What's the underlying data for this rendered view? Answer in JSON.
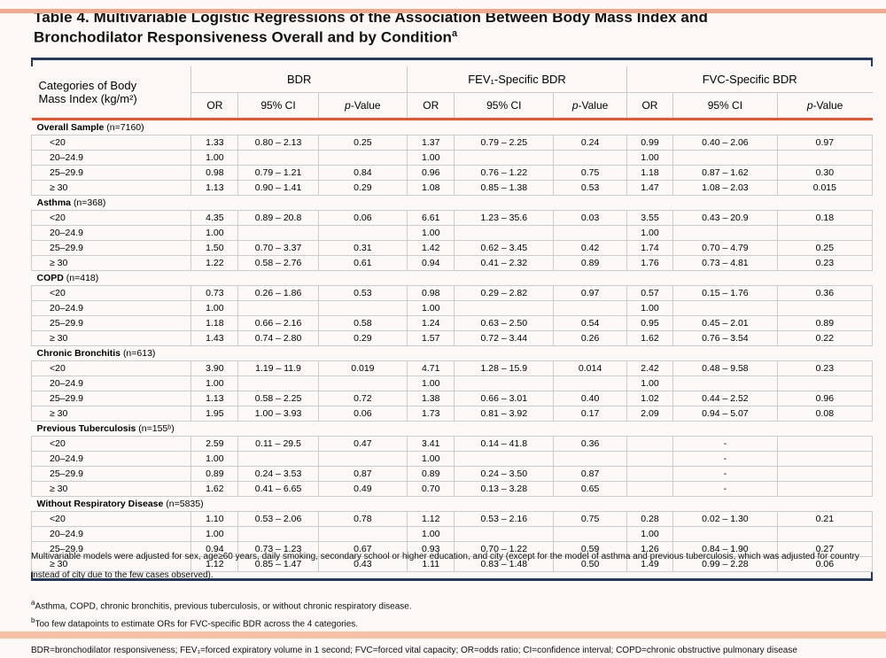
{
  "page": {
    "accent_navy": "#24395e",
    "accent_orange": "#ed5328",
    "accent_salmon": "#f2a98e"
  },
  "title": {
    "line1": "Table 4. Multivariable Logistic Regressions of the Association Between Body Mass Index and",
    "line2": "Bronchodilator Responsiveness Overall and by Condition",
    "superscript": "a"
  },
  "header": {
    "label_col_line1": "Categories of Body",
    "label_col_line2": "Mass Index (kg/m²)",
    "group1": "BDR",
    "group2": "FEV₁-Specific BDR",
    "group3": "FVC-Specific BDR",
    "sub_or": "OR",
    "sub_ci": "95% CI",
    "sub_p_italic": "p",
    "sub_p_rest": "-Value"
  },
  "table": {
    "sections": [
      {
        "name": "Overall Sample",
        "n": "(n=7160)",
        "rows": [
          {
            "category": "<20",
            "values": [
              "1.33",
              "0.80 – 2.13",
              "0.25",
              "1.37",
              "0.79 – 2.25",
              "0.24",
              "0.99",
              "0.40 – 2.06",
              "0.97"
            ]
          },
          {
            "category": "20–24.9",
            "values": [
              "1.00",
              "",
              "",
              "1.00",
              "",
              "",
              "1.00",
              "",
              ""
            ]
          },
          {
            "category": "25–29.9",
            "values": [
              "0.98",
              "0.79 – 1.21",
              "0.84",
              "0.96",
              "0.76 – 1.22",
              "0.75",
              "1.18",
              "0.87 – 1.62",
              "0.30"
            ]
          },
          {
            "category": "≥ 30",
            "values": [
              "1.13",
              "0.90 – 1.41",
              "0.29",
              "1.08",
              "0.85 – 1.38",
              "0.53",
              "1.47",
              "1.08 – 2.03",
              "0.015"
            ]
          }
        ]
      },
      {
        "name": "Asthma",
        "n": "(n=368)",
        "rows": [
          {
            "category": "<20",
            "values": [
              "4.35",
              "0.89 – 20.8",
              "0.06",
              "6.61",
              "1.23 – 35.6",
              "0.03",
              "3.55",
              "0.43 – 20.9",
              "0.18"
            ]
          },
          {
            "category": "20–24.9",
            "values": [
              "1.00",
              "",
              "",
              "1.00",
              "",
              "",
              "1.00",
              "",
              ""
            ]
          },
          {
            "category": "25–29.9",
            "values": [
              "1.50",
              "0.70 – 3.37",
              "0.31",
              "1.42",
              "0.62 – 3.45",
              "0.42",
              "1.74",
              "0.70 – 4.79",
              "0.25"
            ]
          },
          {
            "category": "≥ 30",
            "values": [
              "1.22",
              "0.58 – 2.76",
              "0.61",
              "0.94",
              "0.41 – 2.32",
              "0.89",
              "1.76",
              "0.73 – 4.81",
              "0.23"
            ]
          }
        ]
      },
      {
        "name": "COPD",
        "n": "(n=418)",
        "rows": [
          {
            "category": "<20",
            "values": [
              "0.73",
              "0.26 – 1.86",
              "0.53",
              "0.98",
              "0.29 – 2.82",
              "0.97",
              "0.57",
              "0.15 – 1.76",
              "0.36"
            ]
          },
          {
            "category": "20–24.9",
            "values": [
              "1.00",
              "",
              "",
              "1.00",
              "",
              "",
              "1.00",
              "",
              ""
            ]
          },
          {
            "category": "25–29.9",
            "values": [
              "1.18",
              "0.66 – 2.16",
              "0.58",
              "1.24",
              "0.63 – 2.50",
              "0.54",
              "0.95",
              "0.45 – 2.01",
              "0.89"
            ]
          },
          {
            "category": "≥ 30",
            "values": [
              "1.43",
              "0.74 – 2.80",
              "0.29",
              "1.57",
              "0.72 – 3.44",
              "0.26",
              "1.62",
              "0.76 – 3.54",
              "0.22"
            ]
          }
        ]
      },
      {
        "name": "Chronic Bronchitis",
        "n": "(n=613)",
        "rows": [
          {
            "category": "<20",
            "values": [
              "3.90",
              "1.19 – 11.9",
              "0.019",
              "4.71",
              "1.28 – 15.9",
              "0.014",
              "2.42",
              "0.48 – 9.58",
              "0.23"
            ]
          },
          {
            "category": "20–24.9",
            "values": [
              "1.00",
              "",
              "",
              "1.00",
              "",
              "",
              "1.00",
              "",
              ""
            ]
          },
          {
            "category": "25–29.9",
            "values": [
              "1.13",
              "0.58 – 2.25",
              "0.72",
              "1.38",
              "0.66 – 3.01",
              "0.40",
              "1.02",
              "0.44 – 2.52",
              "0.96"
            ]
          },
          {
            "category": "≥ 30",
            "values": [
              "1.95",
              "1.00 – 3.93",
              "0.06",
              "1.73",
              "0.81 – 3.92",
              "0.17",
              "2.09",
              "0.94 – 5.07",
              "0.08"
            ]
          }
        ]
      },
      {
        "name": "Previous Tuberculosis",
        "n": "(n=155ᵇ)",
        "rows": [
          {
            "category": "<20",
            "values": [
              "2.59",
              "0.11 – 29.5",
              "0.47",
              "3.41",
              "0.14 – 41.8",
              "0.36",
              "",
              "-",
              ""
            ]
          },
          {
            "category": "20–24.9",
            "values": [
              "1.00",
              "",
              "",
              "1.00",
              "",
              "",
              "",
              "-",
              ""
            ]
          },
          {
            "category": "25–29.9",
            "values": [
              "0.89",
              "0.24 – 3.53",
              "0.87",
              "0.89",
              "0.24 – 3.50",
              "0.87",
              "",
              "-",
              ""
            ]
          },
          {
            "category": "≥ 30",
            "values": [
              "1.62",
              "0.41 – 6.65",
              "0.49",
              "0.70",
              "0.13 – 3.28",
              "0.65",
              "",
              "-",
              ""
            ]
          }
        ]
      },
      {
        "name": "Without Respiratory Disease",
        "n": "(n=5835)",
        "rows": [
          {
            "category": "<20",
            "values": [
              "1.10",
              "0.53 – 2.06",
              "0.78",
              "1.12",
              "0.53 – 2.16",
              "0.75",
              "0.28",
              "0.02 – 1.30",
              "0.21"
            ]
          },
          {
            "category": "20–24.9",
            "values": [
              "1.00",
              "",
              "",
              "1.00",
              "",
              "",
              "1.00",
              "",
              ""
            ]
          },
          {
            "category": "25–29.9",
            "values": [
              "0.94",
              "0.73 – 1.23",
              "0.67",
              "0.93",
              "0.70 – 1.22",
              "0.59",
              "1.26",
              "0.84 – 1.90",
              "0.27"
            ]
          },
          {
            "category": "≥ 30",
            "values": [
              "1.12",
              "0.85 – 1.47",
              "0.43",
              "1.11",
              "0.83 – 1.48",
              "0.50",
              "1.49",
              "0.99 – 2.28",
              "0.06"
            ]
          }
        ]
      }
    ]
  },
  "footnotes": {
    "adjustment": "Multivariable models were adjusted for sex, age≥60 years, daily smoking, secondary school or higher education, and city (except for the model of asthma and previous tuberculosis, which was adjusted for country instead of city due to the few cases observed).",
    "note_a_marker": "a",
    "note_a": "Asthma, COPD, chronic bronchitis, previous tuberculosis, or without chronic respiratory disease.",
    "note_b_marker": "b",
    "note_b": "Too few datapoints to estimate ORs for FVC-specific BDR across the 4 categories.",
    "abbreviations": "BDR=bronchodilator responsiveness; FEV₁=forced expiratory volume in 1 second; FVC=forced vital capacity; OR=odds ratio; CI=confidence interval; COPD=chronic obstructive pulmonary disease"
  }
}
